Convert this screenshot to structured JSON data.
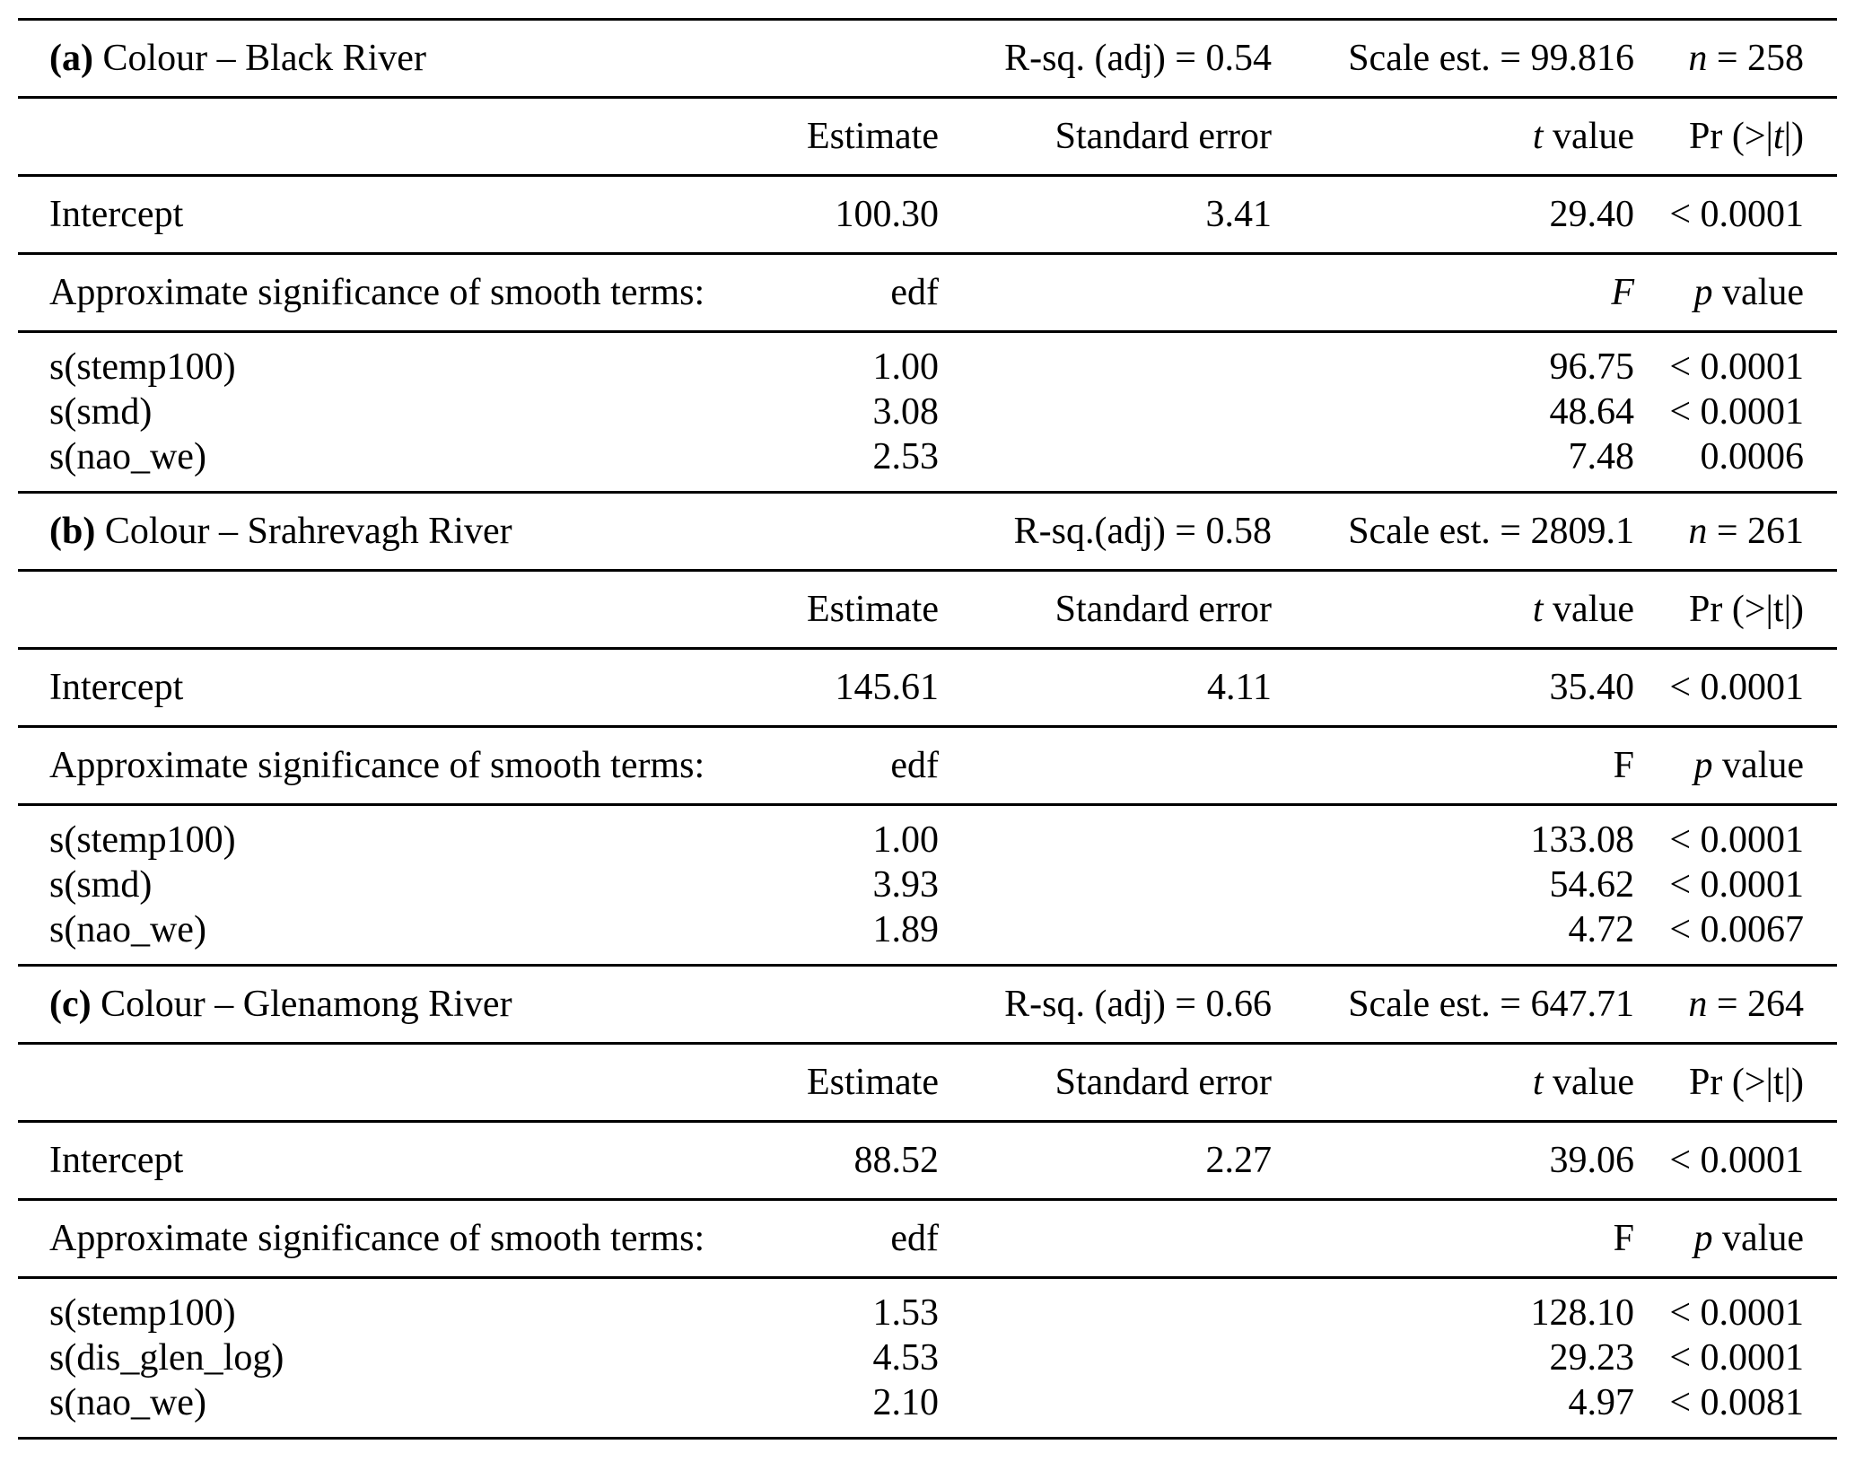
{
  "page": {
    "background_color": "#ffffff",
    "text_color": "#000000",
    "rule_color": "#000000"
  },
  "table": {
    "kind": "GAM model results",
    "sections": [
      {
        "tag": "(a)",
        "title": "Colour – Black River",
        "rsq": "R-sq. (adj) = 0.54",
        "scale": "Scale est. = 99.816",
        "n": "*n* = 258",
        "columns": {
          "estimate": "Estimate",
          "se": "Standard error",
          "t": "*t* value",
          "pr": "Pr (>|*t*|)"
        },
        "intercept": {
          "label": "Intercept",
          "estimate": "100.30",
          "se": "3.41",
          "t": "29.40",
          "pr": "< 0.0001"
        },
        "smooth_header": {
          "label": "Approximate significance of smooth terms:",
          "edf": "edf",
          "f": "*F*",
          "p": "*p* value"
        },
        "smooth_terms": [
          {
            "label": "s(stemp100)",
            "edf": "1.00",
            "f": "96.75",
            "p": "< 0.0001"
          },
          {
            "label": "s(smd)",
            "edf": "3.08",
            "f": "48.64",
            "p": "< 0.0001"
          },
          {
            "label": "s(nao_we)",
            "edf": "2.53",
            "f": "7.48",
            "p": "0.0006"
          }
        ]
      },
      {
        "tag": "(b)",
        "title": "Colour – Srahrevagh River",
        "rsq": "R-sq.(adj) = 0.58",
        "scale": "Scale est. = 2809.1",
        "n": "*n* = 261",
        "columns": {
          "estimate": "Estimate",
          "se": "Standard error",
          "t": "*t* value",
          "pr": "Pr (>|t|)"
        },
        "intercept": {
          "label": "Intercept",
          "estimate": "145.61",
          "se": "4.11",
          "t": "35.40",
          "pr": "< 0.0001"
        },
        "smooth_header": {
          "label": "Approximate significance of smooth terms:",
          "edf": "edf",
          "f": "F",
          "p": "*p* value"
        },
        "smooth_terms": [
          {
            "label": "s(stemp100)",
            "edf": "1.00",
            "f": "133.08",
            "p": "< 0.0001"
          },
          {
            "label": "s(smd)",
            "edf": "3.93",
            "f": "54.62",
            "p": "< 0.0001"
          },
          {
            "label": "s(nao_we)",
            "edf": "1.89",
            "f": "4.72",
            "p": "< 0.0067"
          }
        ]
      },
      {
        "tag": "(c)",
        "title": "Colour – Glenamong River",
        "rsq": "R-sq. (adj) = 0.66",
        "scale": "Scale est. = 647.71",
        "n": "*n* = 264",
        "columns": {
          "estimate": "Estimate",
          "se": "Standard error",
          "t": "*t* value",
          "pr": "Pr (>|t|)"
        },
        "intercept": {
          "label": "Intercept",
          "estimate": "88.52",
          "se": "2.27",
          "t": "39.06",
          "pr": "< 0.0001"
        },
        "smooth_header": {
          "label": "Approximate significance of smooth terms:",
          "edf": "edf",
          "f": "F",
          "p": "*p* value"
        },
        "smooth_terms": [
          {
            "label": "s(stemp100)",
            "edf": "1.53",
            "f": "128.10",
            "p": "< 0.0001"
          },
          {
            "label": "s(dis_glen_log)",
            "edf": "4.53",
            "f": "29.23",
            "p": "< 0.0001"
          },
          {
            "label": "s(nao_we)",
            "edf": "2.10",
            "f": "4.97",
            "p": "< 0.0081"
          }
        ]
      }
    ]
  }
}
